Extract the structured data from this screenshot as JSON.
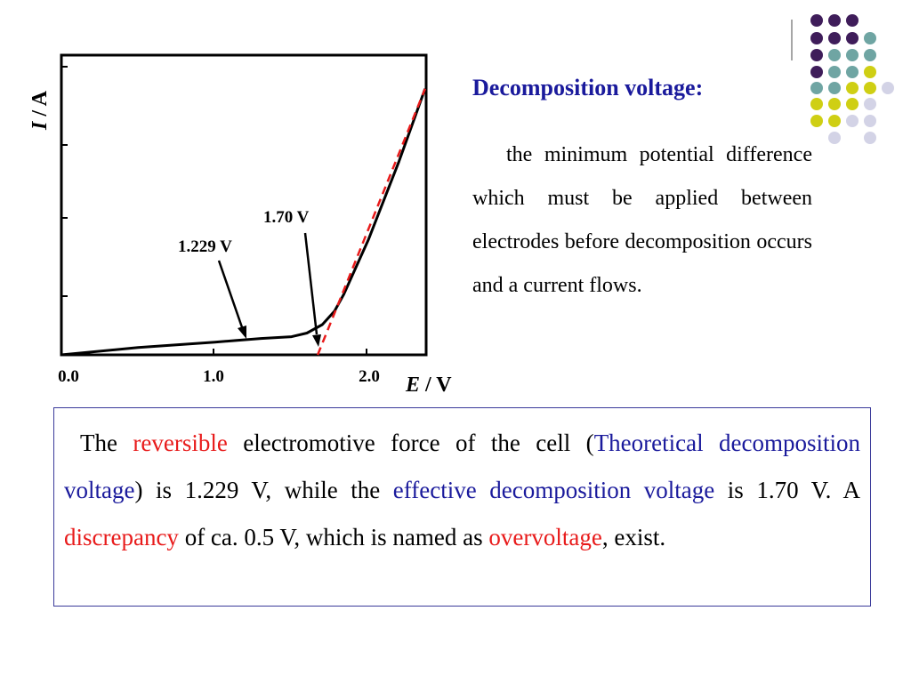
{
  "chart_data": {
    "type": "line",
    "xlabel_italic": "E",
    "xlabel_rest": " / V",
    "ylabel_italic": "I",
    "ylabel_rest": " / A",
    "x_ticks": [
      "0.0",
      "1.0",
      "2.0"
    ],
    "xlim": [
      0.0,
      2.37
    ],
    "series": [
      {
        "style": "solid-black",
        "x": [
          0.0,
          0.5,
          1.0,
          1.3,
          1.5,
          1.6,
          1.7,
          1.78,
          1.84,
          2.0,
          2.2,
          2.37
        ],
        "y": [
          0.0,
          0.024,
          0.042,
          0.054,
          0.06,
          0.072,
          0.1,
          0.145,
          0.2,
          0.38,
          0.64,
          0.88
        ]
      },
      {
        "style": "dashed-red",
        "x": [
          1.67,
          2.37
        ],
        "y": [
          0.0,
          0.88
        ]
      }
    ],
    "annotations": [
      {
        "text": "1.229 V",
        "x": 1.229
      },
      {
        "text": "1.70 V",
        "x": 1.7
      }
    ]
  },
  "definition": {
    "title": "Decomposition voltage:",
    "body": "the minimum potential difference which must be applied between electrodes before decomposition occurs and a current flows."
  },
  "note": {
    "seg1": "The ",
    "seg2": "reversible",
    "seg3": " electromotive force of the cell (",
    "seg4": "Theoretical decomposition voltage",
    "seg5": ") is 1.229 V, while the ",
    "seg6": "effective decomposition voltage",
    "seg7": " is 1.70 V. A ",
    "seg8": "discrepancy",
    "seg9": " of ca. 0.5 V, which is named as ",
    "seg10": "overvoltage",
    "seg11": ", exist."
  },
  "colors": {
    "purple": "#3f1d5a",
    "teal": "#6fa5a3",
    "yellow": "#cfcf14",
    "lavender": "#d3d3e6",
    "red_dash": "#e81b1b"
  }
}
